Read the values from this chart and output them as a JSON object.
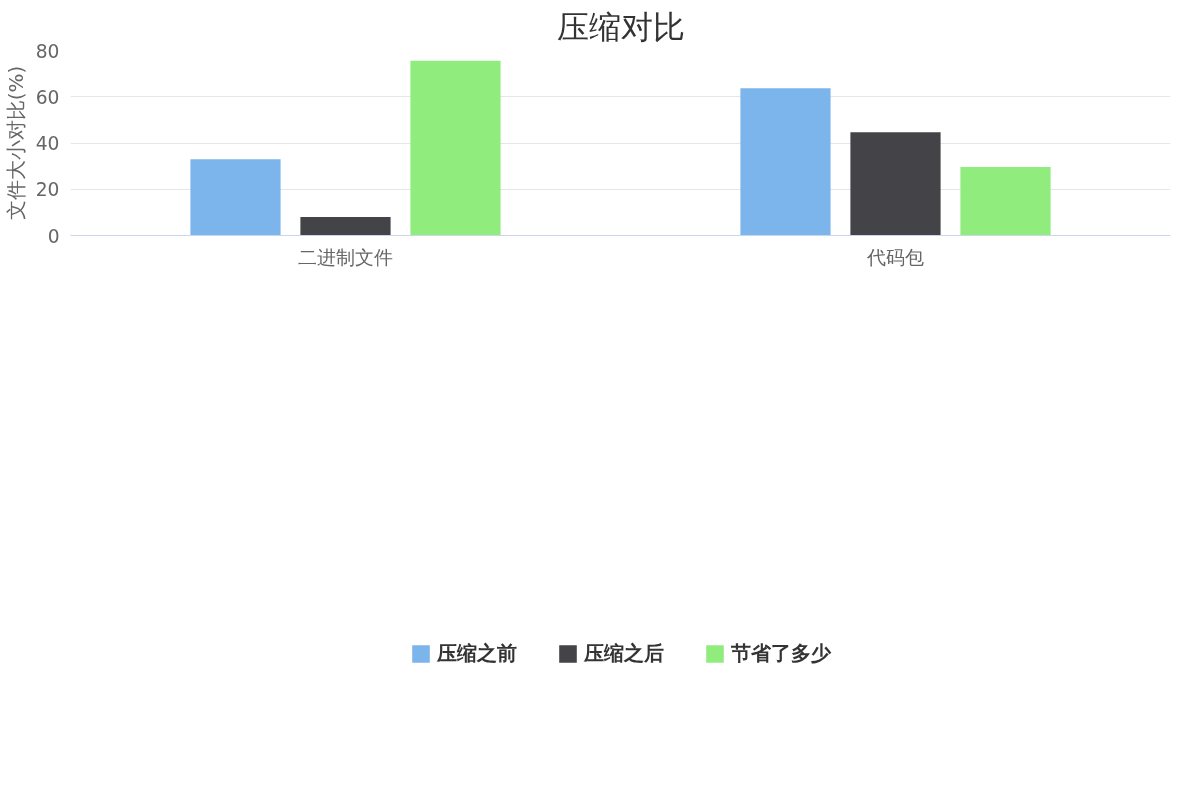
{
  "chart_data": {
    "type": "bar",
    "title": "压缩对比",
    "ylabel": "文件大小对比(%)",
    "categories": [
      "二进制文件",
      "代码包"
    ],
    "series": [
      {
        "name": "压缩之前",
        "color": "#7cb5ec",
        "values": [
          33,
          63.7
        ]
      },
      {
        "name": "压缩之后",
        "color": "#434348",
        "values": [
          8,
          44.7
        ]
      },
      {
        "name": "节省了多少",
        "color": "#90ed7d",
        "values": [
          75.6,
          29.6
        ]
      }
    ],
    "ylim": [
      0,
      80
    ],
    "yticks": [
      0,
      20,
      40,
      60,
      80
    ],
    "grid": "y",
    "legend": "bottom"
  }
}
